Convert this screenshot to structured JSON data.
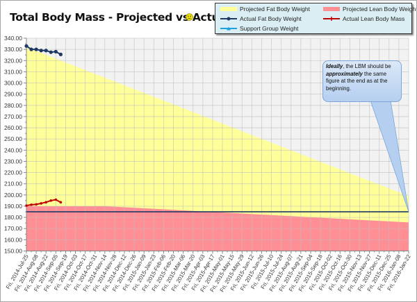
{
  "title": "Total Body Mass - Projected vs Actual",
  "title_icon": "smiley-face-icon",
  "legend": {
    "items": [
      {
        "label": "Projected Fat Body Weight",
        "kind": "area",
        "color": "#ffff99"
      },
      {
        "label": "Projected Lean Body Weight",
        "kind": "area",
        "color": "#ff8f94"
      },
      {
        "label": "Actual Fat Body Weight",
        "kind": "line",
        "color": "#1f3864"
      },
      {
        "label": "Actual Lean Body Mass",
        "kind": "line",
        "color": "#c00000"
      },
      {
        "label": "Support Group Weight",
        "kind": "line",
        "color": "#1ea0e0"
      }
    ]
  },
  "callout": {
    "part1": "Ideally",
    "part2": ", the LBM should be ",
    "part3": "approximately",
    "part4": " the same figure at the end as at the beginning."
  },
  "chart_data": {
    "type": "line",
    "title": "Total Body Mass - Projected vs Actual",
    "ylim": [
      150,
      340
    ],
    "y_tick_step": 10,
    "y_tick_labels": [
      "340.00",
      "330.00",
      "320.00",
      "310.00",
      "300.00",
      "290.00",
      "280.00",
      "270.00",
      "260.00",
      "250.00",
      "240.00",
      "230.00",
      "220.00",
      "210.00",
      "200.00",
      "190.00",
      "180.00",
      "170.00",
      "160.00",
      "150.00"
    ],
    "x_range": [
      "2014-07-25",
      "2016-01-22"
    ],
    "x_tick_labels": [
      "Fri, 2014-Jul-25",
      "Fri, 2014-Aug-08",
      "Fri, 2014-Aug-22",
      "Fri, 2014-Sep-05",
      "Fri, 2014-Sep-19",
      "Fri, 2014-Oct-03",
      "Fri, 2014-Oct-17",
      "Fri, 2014-Oct-31",
      "Fri, 2014-Nov-14",
      "Fri, 2014-Nov-28",
      "Fri, 2014-Dec-12",
      "Fri, 2014-Dec-26",
      "Fri, 2015-Jan-09",
      "Fri, 2015-Jan-23",
      "Fri, 2015-Feb-06",
      "Fri, 2015-Feb-20",
      "Fri, 2015-Mar-06",
      "Fri, 2015-Mar-20",
      "Fri, 2015-Apr-03",
      "Fri, 2015-Apr-17",
      "Fri, 2015-May-01",
      "Fri, 2015-May-15",
      "Fri, 2015-May-29",
      "Fri, 2015-Jun-12",
      "Fri, 2015-Jun-26",
      "Fri, 2015-Jul-10",
      "Fri, 2015-Jul-24",
      "Fri, 2015-Aug-07",
      "Fri, 2015-Aug-21",
      "Fri, 2015-Sep-04",
      "Fri, 2015-Sep-18",
      "Fri, 2015-Oct-02",
      "Fri, 2015-Oct-16",
      "Fri, 2015-Oct-30",
      "Fri, 2015-Nov-13",
      "Fri, 2015-Nov-27",
      "Fri, 2015-Dec-11",
      "Fri, 2015-Dec-25",
      "Fri, 2016-Jan-08",
      "Fri, 2016-Jan-22"
    ],
    "grid": true,
    "legend_position": "top-right",
    "series": [
      {
        "name": "Projected Fat Body Weight",
        "type": "area",
        "color": "#ffff99",
        "points": [
          [
            "2014-07-25",
            332
          ],
          [
            "2016-01-22",
            199
          ]
        ]
      },
      {
        "name": "Projected Lean Body Weight",
        "type": "area",
        "color": "#ff8f94",
        "points": [
          [
            "2014-07-25",
            190
          ],
          [
            "2014-11-14",
            190
          ],
          [
            "2016-01-22",
            175.5
          ]
        ]
      },
      {
        "name": "Actual Fat Body Weight",
        "type": "line",
        "color": "#1f3864",
        "points": [
          [
            "2014-07-25",
            333
          ],
          [
            "2014-08-01",
            330
          ],
          [
            "2014-08-08",
            330
          ],
          [
            "2014-08-15",
            329
          ],
          [
            "2014-08-22",
            329
          ],
          [
            "2014-08-29",
            327.5
          ],
          [
            "2014-09-05",
            328
          ],
          [
            "2014-09-12",
            325.5
          ]
        ]
      },
      {
        "name": "Actual Lean Body Mass",
        "type": "line",
        "color": "#c00000",
        "points": [
          [
            "2014-07-25",
            190.5
          ],
          [
            "2014-08-01",
            191.3
          ],
          [
            "2014-08-08",
            191.6
          ],
          [
            "2014-08-15",
            192.5
          ],
          [
            "2014-08-22",
            193.5
          ],
          [
            "2014-08-29",
            195
          ],
          [
            "2014-09-05",
            195.8
          ],
          [
            "2014-09-12",
            193.5
          ]
        ]
      }
    ],
    "horizontal_line": {
      "value": 185,
      "color": "#1f3864"
    }
  }
}
